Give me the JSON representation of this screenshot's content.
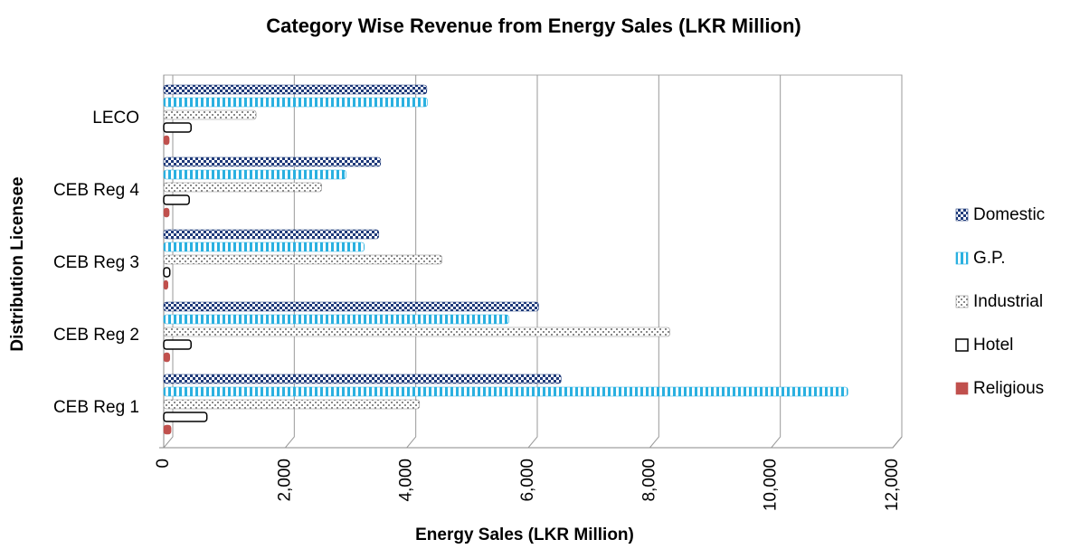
{
  "chart_data": {
    "type": "hbar",
    "title": "Category Wise Revenue from Energy Sales (LKR Million)",
    "xlabel": "Energy Sales (LKR Million)",
    "ylabel": "Distribution Licensee",
    "categories": [
      "CEB Reg 1",
      "CEB Reg 2",
      "CEB Reg 3",
      "CEB Reg 4",
      "LECO"
    ],
    "series": [
      {
        "name": "Domestic",
        "color": "#1f3a7a",
        "pattern": "checker",
        "values": [
          6540,
          6170,
          3540,
          3570,
          4330
        ]
      },
      {
        "name": "G.P.",
        "color": "#2ab0e0",
        "pattern": "stripes",
        "values": [
          11260,
          5680,
          3300,
          3000,
          4340
        ]
      },
      {
        "name": "Industrial",
        "color": "#8a8a8a",
        "pattern": "dots",
        "values": [
          4210,
          8330,
          4580,
          2600,
          1520
        ]
      },
      {
        "name": "Hotel",
        "color": "#000000",
        "pattern": "outline",
        "values": [
          710,
          450,
          100,
          420,
          450
        ]
      },
      {
        "name": "Religious",
        "color": "#c0504d",
        "pattern": "solid",
        "values": [
          120,
          100,
          70,
          90,
          90
        ]
      }
    ],
    "xlim": [
      0,
      12000
    ],
    "xticks": [
      0,
      {
        "value": 2000,
        "label": "2,000"
      },
      {
        "value": 4000,
        "label": "4,000"
      },
      {
        "value": 6000,
        "label": "6,000"
      },
      {
        "value": 8000,
        "label": "8,000"
      },
      {
        "value": 10000,
        "label": "10,000"
      },
      {
        "value": 12000,
        "label": "12,000"
      }
    ],
    "grid": true,
    "legend": "right"
  }
}
